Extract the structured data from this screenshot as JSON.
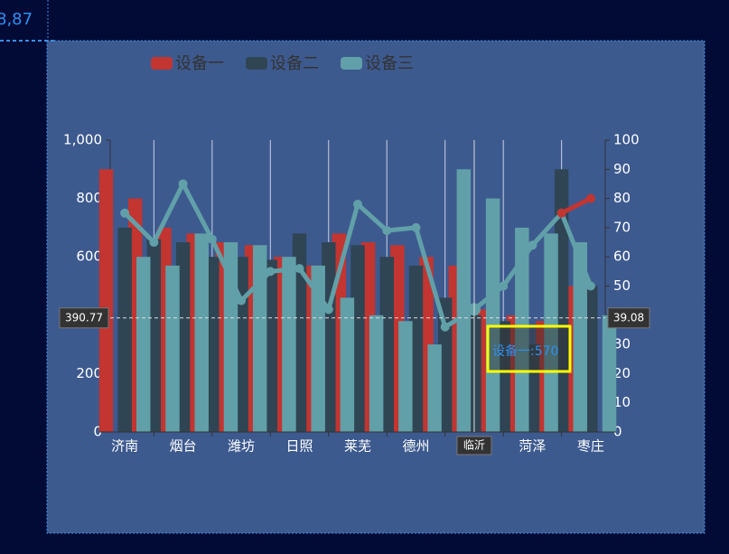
{
  "corner_text": "8,87",
  "chart_data": {
    "type": "bar",
    "categories": [
      "济南",
      null,
      "烟台",
      null,
      "潍坊",
      null,
      "日照",
      null,
      "莱芜",
      null,
      "德州",
      null,
      "临沂",
      null,
      "菏泽",
      null,
      "枣庄"
    ],
    "series": [
      {
        "name": "设备一",
        "type": "bar",
        "color": "#c23531",
        "values": [
          900,
          800,
          700,
          680,
          650,
          640,
          600,
          570,
          680,
          650,
          640,
          600,
          570,
          420,
          400,
          380,
          500
        ]
      },
      {
        "name": "设备二",
        "type": "bar",
        "color": "#2f4554",
        "values": [
          700,
          660,
          650,
          600,
          600,
          590,
          680,
          650,
          640,
          600,
          570,
          460,
          400,
          380,
          300,
          900,
          500
        ]
      },
      {
        "name": "设备三",
        "type": "bar",
        "color": "#61a0a8",
        "values": [
          600,
          570,
          680,
          650,
          640,
          600,
          570,
          460,
          400,
          380,
          300,
          900,
          800,
          700,
          680,
          650,
          400
        ]
      },
      {
        "type": "line",
        "axis": "y2",
        "color": "#61a0a8",
        "values": [
          75,
          65,
          85,
          66,
          45,
          55,
          56,
          42,
          78,
          69,
          70,
          36,
          42,
          50,
          64,
          75,
          50
        ]
      },
      {
        "type": "line",
        "axis": "y2",
        "color": "#c23531",
        "values": [
          null,
          null,
          null,
          null,
          null,
          null,
          null,
          null,
          null,
          null,
          null,
          null,
          null,
          null,
          null,
          75,
          80
        ]
      }
    ],
    "ylim": [
      0,
      1000
    ],
    "yticks": [
      0,
      200,
      400,
      600,
      800,
      {
        "value": 1000,
        "label": "1,000"
      }
    ],
    "y2lim": [
      0,
      100
    ],
    "y2ticks": [
      0,
      10,
      20,
      30,
      40,
      50,
      60,
      70,
      80,
      90,
      100
    ],
    "axis_pointer": {
      "category": 12,
      "y": 390.77,
      "y2": 39.08
    },
    "tooltip": "设备一:570"
  }
}
